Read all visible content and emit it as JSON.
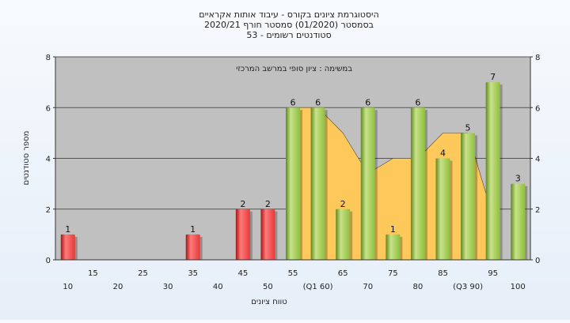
{
  "chart_data": {
    "type": "bar",
    "title_lines": [
      "היסטוגרמת ציונים בקורס - עיבוד אותות אקראיים",
      "בסמסטר  (01/2020)  סמסטר חורף  2020/21",
      "סטודנטים רשומים - 53"
    ],
    "annotation": "במשימה : ציון סופי במרשב המרכזי",
    "ylabel": "מספר סטודנטים",
    "xlabel": "טווח ציונים",
    "ylim": [
      0,
      8
    ],
    "y_ticks": [
      0,
      2,
      4,
      6,
      8
    ],
    "grid": "horizontal",
    "categories": [
      "10",
      "15",
      "20",
      "25",
      "30",
      "35",
      "40",
      "45",
      "50",
      "55",
      "(Q1 60)",
      "65",
      "70",
      "75",
      "80",
      "85",
      "(Q3 90)",
      "95",
      "100"
    ],
    "values": [
      1,
      0,
      0,
      0,
      0,
      1,
      0,
      2,
      2,
      6,
      6,
      2,
      6,
      1,
      6,
      4,
      5,
      7,
      3
    ],
    "highlighted_categories": [
      "10",
      "35",
      "45",
      "50"
    ],
    "band_values": [
      6,
      6,
      5,
      3.4,
      4,
      4,
      5,
      5,
      1.7
    ],
    "colors": {
      "bar_red": "#e63a3a",
      "bar_green": "#8fbf3c",
      "band": "#ffc85a",
      "plot_bg": "#c0c0c0",
      "grid": "#555555"
    }
  }
}
